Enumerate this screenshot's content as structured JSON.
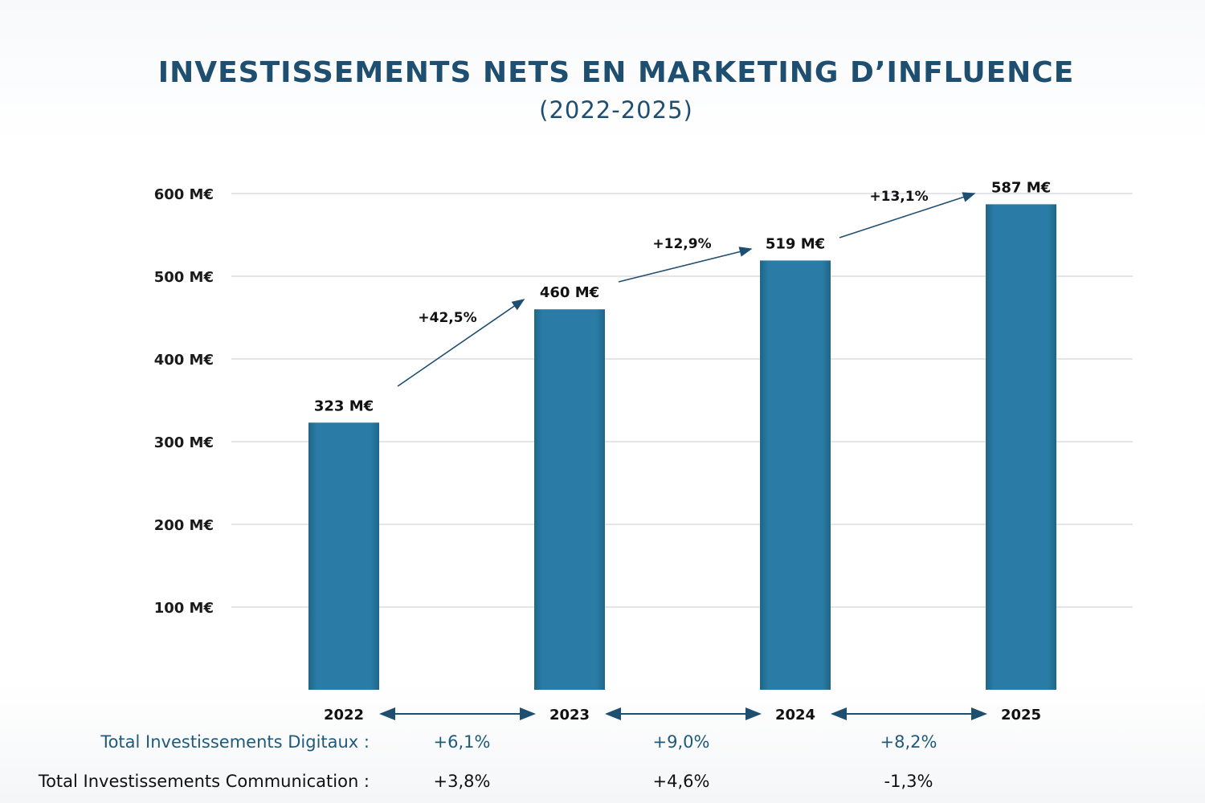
{
  "chart_data": {
    "type": "bar",
    "title": "INVESTISSEMENTS NETS EN MARKETING D’INFLUENCE",
    "subtitle": "(2022-2025)",
    "categories": [
      "2022",
      "2023",
      "2024",
      "2025"
    ],
    "values": [
      323,
      460,
      519,
      587
    ],
    "data_labels": [
      "323 M€",
      "460 M€",
      "519 M€",
      "587 M€"
    ],
    "ylim": [
      0,
      600
    ],
    "yticks": [
      100,
      200,
      300,
      400,
      500,
      600
    ],
    "ytick_labels": [
      "100 M€",
      "200 M€",
      "300 M€",
      "400 M€",
      "500 M€",
      "600 M€"
    ],
    "grid": true,
    "bar_color": "#2a7ca6",
    "growth_labels": [
      "+42,5%",
      "+12,9%",
      "+13,1%"
    ],
    "bottom_rows": [
      {
        "label": "Total Investissements Digitaux :",
        "values": [
          "+6,1%",
          "+9,0%",
          "+8,2%"
        ],
        "color": "#1f5a7a"
      },
      {
        "label": "Total Investissements Communication :",
        "values": [
          "+3,8%",
          "+4,6%",
          "-1,3%"
        ],
        "color": "#111111"
      }
    ]
  }
}
